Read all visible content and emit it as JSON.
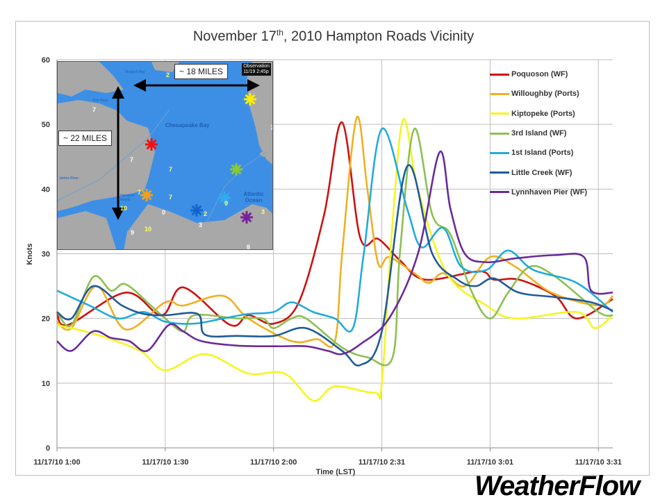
{
  "chart_data": {
    "type": "line",
    "title": "November 17th, 2010 Hampton Roads Vicinity",
    "title_parts": {
      "pre": "November 17",
      "sup": "th",
      "post": ", 2010 Hampton Roads Vicinity"
    },
    "xlabel": "Time (LST)",
    "ylabel": "Knots",
    "ylim": [
      0,
      60
    ],
    "yticks": [
      0,
      10,
      20,
      30,
      40,
      50,
      60
    ],
    "xlim": [
      "1:00",
      "3:34"
    ],
    "xtick_labels": [
      "11/17/10 1:00",
      "11/17/10 1:30",
      "11/17/10 2:00",
      "11/17/10 2:31",
      "11/17/10 3:01",
      "11/17/10 3:31"
    ],
    "grid": true,
    "legend_position": "top-right",
    "series": [
      {
        "name": "Poquoson (WF)",
        "color": "#cc1111",
        "points": [
          [
            "1:00",
            21
          ],
          [
            "1:03",
            19
          ],
          [
            "1:19",
            24
          ],
          [
            "1:29",
            20.5
          ],
          [
            "1:35",
            24.8
          ],
          [
            "1:48",
            19
          ],
          [
            "1:53",
            20.5
          ],
          [
            "2:00",
            19.2
          ],
          [
            "2:07",
            22.5
          ],
          [
            "2:14",
            36
          ],
          [
            "2:19",
            50.3
          ],
          [
            "2:24",
            32.5
          ],
          [
            "2:29",
            32.3
          ],
          [
            "2:35",
            29
          ],
          [
            "2:42",
            26
          ],
          [
            "2:57",
            27.3
          ],
          [
            "3:01",
            26
          ],
          [
            "3:08",
            26
          ],
          [
            "3:18",
            23.5
          ],
          [
            "3:24",
            20
          ],
          [
            "3:34",
            23
          ]
        ]
      },
      {
        "name": "Willoughby (Ports)",
        "color": "#f0b020",
        "points": [
          [
            "1:00",
            19.5
          ],
          [
            "1:04",
            18.5
          ],
          [
            "1:11",
            25
          ],
          [
            "1:19",
            18.3
          ],
          [
            "1:30",
            22.5
          ],
          [
            "1:35",
            22
          ],
          [
            "1:46",
            23.5
          ],
          [
            "1:53",
            20
          ],
          [
            "2:05",
            16.5
          ],
          [
            "2:12",
            16.8
          ],
          [
            "2:17",
            16.5
          ],
          [
            "2:19",
            30
          ],
          [
            "2:23",
            51
          ],
          [
            "2:26",
            40
          ],
          [
            "2:29",
            28.5
          ],
          [
            "2:32",
            29.5
          ],
          [
            "2:39",
            27
          ],
          [
            "2:43",
            25.5
          ],
          [
            "2:47",
            27
          ],
          [
            "2:53",
            25
          ],
          [
            "3:00",
            29.5
          ],
          [
            "3:07",
            28
          ],
          [
            "3:17",
            24
          ],
          [
            "3:30",
            22
          ],
          [
            "3:34",
            23.5
          ]
        ]
      },
      {
        "name": "Kiptopeke (Ports)",
        "color": "#f5f520",
        "points": [
          [
            "1:00",
            19
          ],
          [
            "1:11",
            17.5
          ],
          [
            "1:23",
            15
          ],
          [
            "1:30",
            12
          ],
          [
            "1:41",
            14.5
          ],
          [
            "1:53",
            11.5
          ],
          [
            "2:03",
            11.5
          ],
          [
            "2:11",
            7.3
          ],
          [
            "2:17",
            9.5
          ],
          [
            "2:28",
            8.5
          ],
          [
            "2:30",
            10
          ],
          [
            "2:33",
            35
          ],
          [
            "2:36",
            50.8
          ],
          [
            "2:40",
            40
          ],
          [
            "2:48",
            27
          ],
          [
            "2:59",
            22
          ],
          [
            "3:07",
            20
          ],
          [
            "3:24",
            21
          ],
          [
            "3:29",
            18.5
          ],
          [
            "3:34",
            20.5
          ]
        ]
      },
      {
        "name": "3rd Island (WF)",
        "color": "#8dc050",
        "points": [
          [
            "1:00",
            21
          ],
          [
            "1:04",
            19
          ],
          [
            "1:10",
            26.4
          ],
          [
            "1:15",
            24.3
          ],
          [
            "1:19",
            25.3
          ],
          [
            "1:26",
            22
          ],
          [
            "1:30",
            20
          ],
          [
            "1:35",
            18
          ],
          [
            "1:38",
            20.5
          ],
          [
            "1:50",
            20
          ],
          [
            "1:57",
            20
          ],
          [
            "2:00",
            18.5
          ],
          [
            "2:05",
            20
          ],
          [
            "2:09",
            20
          ],
          [
            "2:19",
            15.5
          ],
          [
            "2:26",
            14
          ],
          [
            "2:33",
            14
          ],
          [
            "2:35",
            30
          ],
          [
            "2:39",
            49.3
          ],
          [
            "2:44",
            36
          ],
          [
            "2:49",
            33
          ],
          [
            "2:55",
            24
          ],
          [
            "3:00",
            20
          ],
          [
            "3:05",
            24
          ],
          [
            "3:11",
            28
          ],
          [
            "3:18",
            26.5
          ],
          [
            "3:30",
            21
          ],
          [
            "3:34",
            20.5
          ]
        ]
      },
      {
        "name": "1st Island (Ports)",
        "color": "#22aadd",
        "points": [
          [
            "1:00",
            24.3
          ],
          [
            "1:09",
            22
          ],
          [
            "1:17",
            20
          ],
          [
            "1:24",
            21
          ],
          [
            "1:30",
            19.5
          ],
          [
            "1:38",
            19.2
          ],
          [
            "1:46",
            20
          ],
          [
            "1:53",
            20.7
          ],
          [
            "2:00",
            21
          ],
          [
            "2:05",
            22.5
          ],
          [
            "2:11",
            21
          ],
          [
            "2:17",
            20
          ],
          [
            "2:22",
            18.5
          ],
          [
            "2:25",
            30
          ],
          [
            "2:30",
            49.3
          ],
          [
            "2:37",
            37
          ],
          [
            "2:41",
            31
          ],
          [
            "2:47",
            34
          ],
          [
            "2:52",
            28
          ],
          [
            "2:59",
            27.5
          ],
          [
            "3:05",
            30.5
          ],
          [
            "3:12",
            27.5
          ],
          [
            "3:24",
            25.5
          ],
          [
            "3:34",
            21
          ]
        ]
      },
      {
        "name": "Little Creek (WF)",
        "color": "#1f5a9a",
        "points": [
          [
            "1:00",
            21
          ],
          [
            "1:04",
            20
          ],
          [
            "1:10",
            25
          ],
          [
            "1:18",
            22
          ],
          [
            "1:24",
            20.7
          ],
          [
            "1:30",
            20.5
          ],
          [
            "1:39",
            20.7
          ],
          [
            "1:41",
            17.5
          ],
          [
            "1:50",
            17.3
          ],
          [
            "2:00",
            17.3
          ],
          [
            "2:09",
            18.5
          ],
          [
            "2:19",
            15
          ],
          [
            "2:24",
            12.8
          ],
          [
            "2:30",
            18
          ],
          [
            "2:37",
            43.5
          ],
          [
            "2:44",
            30
          ],
          [
            "2:51",
            26
          ],
          [
            "2:56",
            25
          ],
          [
            "3:01",
            26.2
          ],
          [
            "3:08",
            24
          ],
          [
            "3:18",
            23.3
          ],
          [
            "3:28",
            22.5
          ],
          [
            "3:34",
            21.2
          ]
        ]
      },
      {
        "name": "Lynnhaven Pier (WF)",
        "color": "#6a2a9a",
        "points": [
          [
            "1:00",
            16.5
          ],
          [
            "1:04",
            15
          ],
          [
            "1:10",
            18
          ],
          [
            "1:15",
            17
          ],
          [
            "1:20",
            16.5
          ],
          [
            "1:25",
            15
          ],
          [
            "1:31",
            19
          ],
          [
            "1:35",
            18
          ],
          [
            "1:40",
            16.5
          ],
          [
            "1:50",
            15.8
          ],
          [
            "2:01",
            15.7
          ],
          [
            "2:09",
            15.7
          ],
          [
            "2:15",
            15
          ],
          [
            "2:19",
            14.5
          ],
          [
            "2:24",
            16
          ],
          [
            "2:32",
            20
          ],
          [
            "2:40",
            30
          ],
          [
            "2:46",
            45.7
          ],
          [
            "2:49",
            37
          ],
          [
            "2:53",
            30
          ],
          [
            "2:59",
            28.7
          ],
          [
            "3:07",
            29.3
          ],
          [
            "3:18",
            29.8
          ],
          [
            "3:26",
            29.5
          ],
          [
            "3:28",
            24.3
          ],
          [
            "3:34",
            24
          ]
        ]
      }
    ]
  },
  "map_inset": {
    "distance_horizontal": "~ 18 MILES",
    "distance_vertical": "~ 22 MILES",
    "water_bay": "Chesapeake Bay",
    "water_ocean": "Atlantic Ocean",
    "place_mobjack": "Mobjack Bay",
    "place_york": "York River",
    "place_hampton": "Hampton Roads",
    "place_james": "James River",
    "observation_line1": "Observation",
    "observation_line2": "11/19  2:45p",
    "wind_values": [
      "2",
      "7",
      "7",
      "7",
      "7",
      "7",
      "10",
      "0",
      "3",
      "2",
      "9",
      "3",
      "9",
      "10",
      "8",
      "7"
    ],
    "marker_colors": [
      "#ffee00",
      "#ee1111",
      "#f0a020",
      "#88cc33",
      "#33aaee",
      "#1166cc",
      "#772299"
    ]
  },
  "logo": "WeatherFlow"
}
